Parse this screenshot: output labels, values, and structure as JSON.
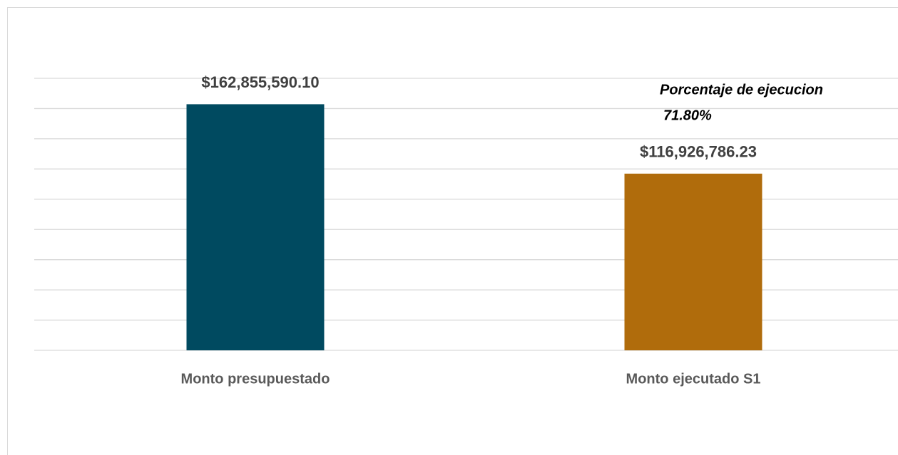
{
  "chart_data": {
    "type": "bar",
    "categories": [
      "Monto presupuestado",
      "Monto ejecutado S1"
    ],
    "values": [
      162855590.1,
      116926786.23
    ],
    "value_labels": [
      "$162,855,590.10",
      "$116,926,786.23"
    ],
    "colors": [
      "#004a60",
      "#b06c0c"
    ],
    "annotation": [
      "Porcentaje de ejecucion",
      "71.80%"
    ],
    "ylim": [
      0,
      180000000
    ],
    "yticks": [
      0,
      20000000,
      40000000,
      60000000,
      80000000,
      100000000,
      120000000,
      140000000,
      160000000,
      180000000
    ],
    "grid": true
  }
}
